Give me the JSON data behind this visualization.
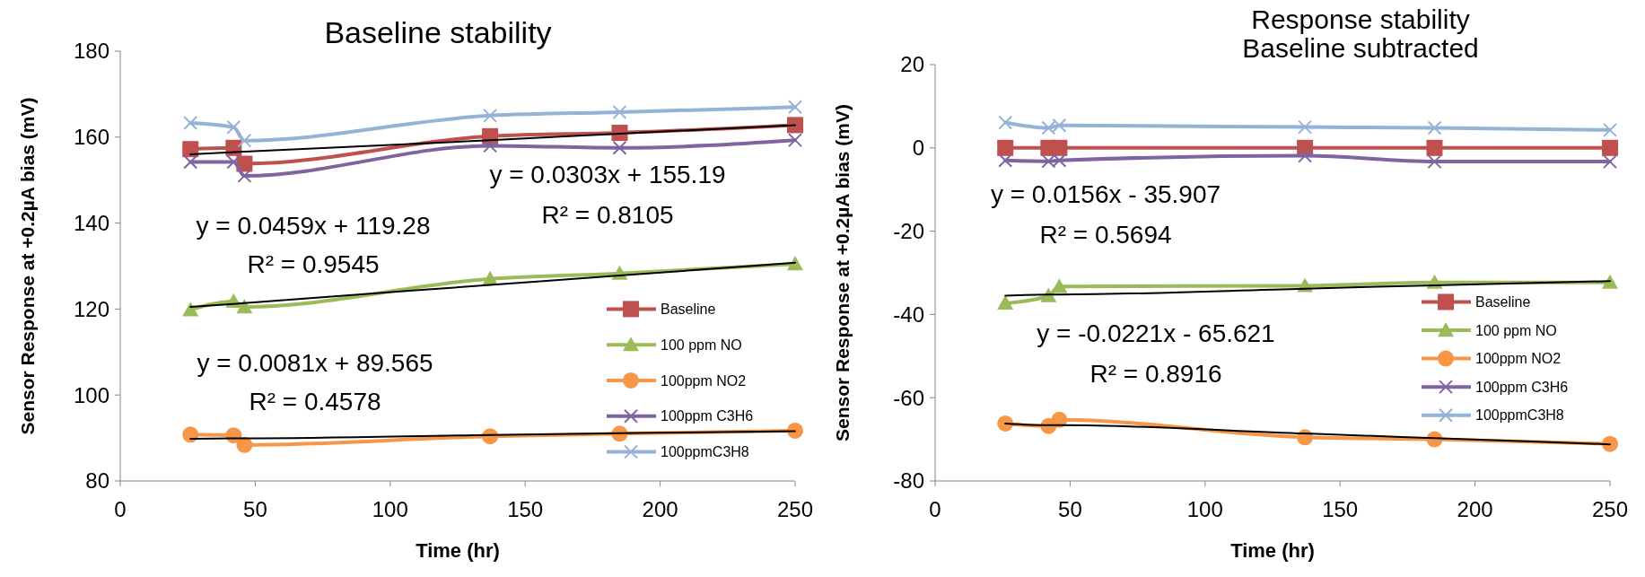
{
  "chart_data": [
    {
      "type": "line",
      "title": "Baseline stability",
      "xlabel": "Time (hr)",
      "ylabel": "Sensor Response at +0.2µA bias (mV)",
      "x": [
        26,
        42,
        46,
        137,
        185,
        250
      ],
      "xlim": [
        0,
        250
      ],
      "xticks": [
        0,
        50,
        100,
        150,
        200,
        250
      ],
      "ylim": [
        80,
        180
      ],
      "yticks": [
        80,
        100,
        120,
        140,
        160,
        180
      ],
      "grid": false,
      "legend": "right",
      "series": [
        {
          "name": "Baseline",
          "color": "#c0504d",
          "marker": "square",
          "values": [
            157.2,
            157.5,
            153.8,
            160.2,
            161,
            162.8
          ]
        },
        {
          "name": "100 ppm NO",
          "color": "#9bbb59",
          "marker": "triangle",
          "values": [
            119.8,
            121.8,
            120.5,
            127,
            128.3,
            130.5
          ]
        },
        {
          "name": "100ppm NO2",
          "color": "#f79646",
          "marker": "circle",
          "values": [
            90.8,
            90.6,
            88.4,
            90.4,
            91,
            91.7
          ]
        },
        {
          "name": "100ppm C3H6",
          "color": "#8064a2",
          "marker": "cross",
          "values": [
            154.2,
            154.2,
            151,
            158,
            157.5,
            159.3
          ]
        },
        {
          "name": "100ppmC3H8",
          "color": "#95b3d7",
          "marker": "cross",
          "values": [
            163.3,
            162.3,
            159.2,
            165,
            165.8,
            167
          ]
        },
        {
          "type": "line",
          "color": "#000000",
          "marker": "none",
          "values": [
            156,
            156.5,
            156.6,
            159.3,
            160.8,
            162.8
          ]
        },
        {
          "type": "line",
          "color": "#000000",
          "marker": "none",
          "values": [
            120.5,
            121.2,
            121.4,
            125.6,
            127.8,
            130.8
          ]
        },
        {
          "type": "line",
          "color": "#000000",
          "marker": "none",
          "values": [
            89.8,
            89.9,
            89.9,
            90.7,
            91.1,
            91.6
          ]
        }
      ],
      "annotations": [
        "y = 0.0303x + 155.19",
        "R² = 0.8105",
        "y = 0.0459x + 119.28",
        "R² = 0.9545",
        "y = 0.0081x + 89.565",
        "R² = 0.4578"
      ]
    },
    {
      "type": "line",
      "title": "Response stability",
      "subtitle": "Baseline subtracted",
      "xlabel": "Time (hr)",
      "ylabel": "Sensor Response at +0.2µA bias (mV)",
      "x": [
        26,
        42,
        46,
        137,
        185,
        250
      ],
      "xlim": [
        0,
        250
      ],
      "xticks": [
        0,
        50,
        100,
        150,
        200,
        250
      ],
      "ylim": [
        -80,
        20
      ],
      "yticks": [
        -80,
        -60,
        -40,
        -20,
        0,
        20
      ],
      "grid": false,
      "legend": "right",
      "series": [
        {
          "name": "Baseline",
          "color": "#c0504d",
          "marker": "square",
          "values": [
            0,
            0,
            0,
            0,
            0,
            0
          ]
        },
        {
          "name": "100 ppm NO",
          "color": "#9bbb59",
          "marker": "triangle",
          "values": [
            -37.3,
            -35.5,
            -33.3,
            -33.1,
            -32.3,
            -32.3
          ]
        },
        {
          "name": "100ppm NO2",
          "color": "#f79646",
          "marker": "circle",
          "values": [
            -66.2,
            -66.8,
            -65.3,
            -69.5,
            -70,
            -71.1
          ]
        },
        {
          "name": "100ppm C3H6",
          "color": "#8064a2",
          "marker": "cross",
          "values": [
            -3,
            -3.2,
            -3,
            -1.9,
            -3.3,
            -3.3
          ]
        },
        {
          "name": "100ppmC3H8",
          "color": "#95b3d7",
          "marker": "cross",
          "values": [
            6.1,
            4.8,
            5.4,
            5,
            4.8,
            4.3
          ]
        },
        {
          "type": "line",
          "color": "#000000",
          "marker": "none",
          "values": [
            -35.5,
            -35.2,
            -35.2,
            -33.8,
            -33,
            -32
          ]
        },
        {
          "type": "line",
          "color": "#000000",
          "marker": "none",
          "values": [
            -66.2,
            -66.6,
            -66.6,
            -68.6,
            -69.7,
            -71.2
          ]
        }
      ],
      "annotations": [
        "y = 0.0156x - 35.907",
        "R² = 0.5694",
        "y = -0.0221x - 65.621",
        "R² = 0.8916"
      ]
    }
  ]
}
